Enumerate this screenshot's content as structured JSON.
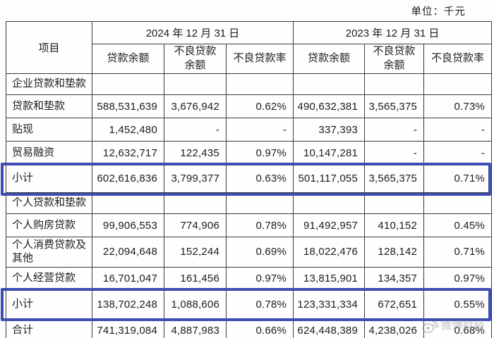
{
  "page": {
    "unit_label": "单位：千元"
  },
  "colors": {
    "highlight_border": "#3d4cb0",
    "table_border": "#3a3a3a",
    "text": "#1c1c1c",
    "watermark_gray": "#969696"
  },
  "table": {
    "item_header": "项目",
    "col_groups": [
      {
        "label": "2024 年 12 月 31 日",
        "columns": [
          "贷款余额",
          "不良贷款余额",
          "不良贷款率"
        ]
      },
      {
        "label": "2023 年 12 月 31 日",
        "columns": [
          "贷款余额",
          "不良贷款余额",
          "不良贷款率"
        ]
      }
    ],
    "rows": [
      {
        "label": "企业贷款和垫款",
        "type": "section",
        "values": [
          "",
          "",
          "",
          "",
          "",
          ""
        ]
      },
      {
        "label": "贷款和垫款",
        "type": "data",
        "values": [
          "588,531,639",
          "3,676,942",
          "0.62%",
          "490,632,381",
          "3,565,375",
          "0.73%"
        ]
      },
      {
        "label": "贴现",
        "type": "data",
        "values": [
          "1,452,480",
          "-",
          "-",
          "337,393",
          "-",
          "-"
        ]
      },
      {
        "label": "贸易融资",
        "type": "data",
        "values": [
          "12,632,717",
          "122,435",
          "0.97%",
          "10,147,281",
          "-",
          "-"
        ]
      },
      {
        "label": "小计",
        "type": "subtotal",
        "values": [
          "602,616,836",
          "3,799,377",
          "0.63%",
          "501,117,055",
          "3,565,375",
          "0.71%"
        ]
      },
      {
        "label": "个人贷款和垫款",
        "type": "section",
        "values": [
          "",
          "",
          "",
          "",
          "",
          ""
        ]
      },
      {
        "label": "个人购房贷款",
        "type": "data",
        "values": [
          "99,906,553",
          "774,906",
          "0.78%",
          "91,492,957",
          "410,152",
          "0.45%"
        ]
      },
      {
        "label": "个人消费贷款及其他",
        "type": "data",
        "values": [
          "22,094,648",
          "152,244",
          "0.69%",
          "18,022,476",
          "128,142",
          "0.71%"
        ]
      },
      {
        "label": "个人经营贷款",
        "type": "data",
        "values": [
          "16,701,047",
          "161,456",
          "0.97%",
          "13,815,901",
          "134,357",
          "0.97%"
        ]
      },
      {
        "label": "小计",
        "type": "subtotal",
        "values": [
          "138,702,248",
          "1,088,606",
          "0.78%",
          "123,331,334",
          "672,651",
          "0.55%"
        ]
      },
      {
        "label": "合计",
        "type": "total",
        "values": [
          "741,319,084",
          "4,887,983",
          "0.66%",
          "624,448,389",
          "4,238,026",
          "0.68%"
        ]
      }
    ]
  },
  "watermark": {
    "icon": "weibo-eye-icon",
    "text": "微博财经"
  }
}
